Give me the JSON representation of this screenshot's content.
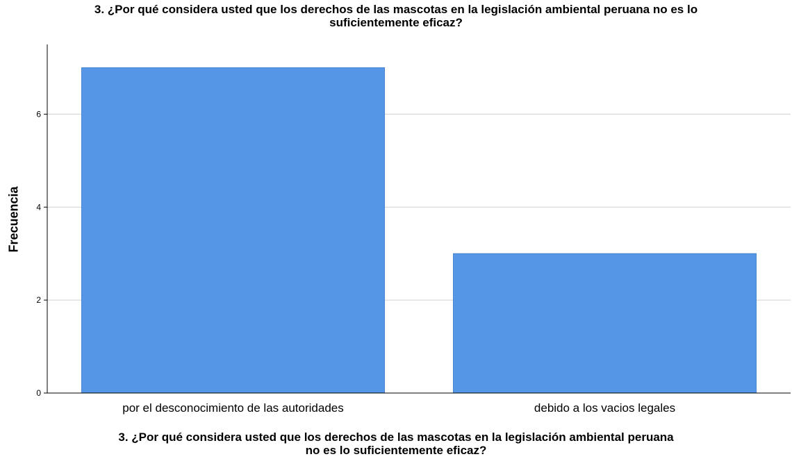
{
  "chart_data": {
    "type": "bar",
    "title_lines": [
      "3. ¿Por qué considera usted que los derechos de las mascotas en la legislación ambiental peruana no es lo",
      "suficientemente eficaz?"
    ],
    "xlabel_lines": [
      "3. ¿Por qué considera usted que los derechos de las mascotas en la legislación ambiental peruana",
      "no es lo suficientemente eficaz?"
    ],
    "ylabel": "Frecuencia",
    "categories": [
      "por el desconocimiento de las autoridades",
      "debido a los vacios legales"
    ],
    "values": [
      7,
      3
    ],
    "ylim": [
      0,
      7.5
    ],
    "yticks": [
      0,
      2,
      4,
      6
    ],
    "grid": true,
    "colors": {
      "bar": "#5596e6",
      "bar_edge": "#4a86d0",
      "grid": "#d0d0d0",
      "axis": "#000000"
    }
  }
}
